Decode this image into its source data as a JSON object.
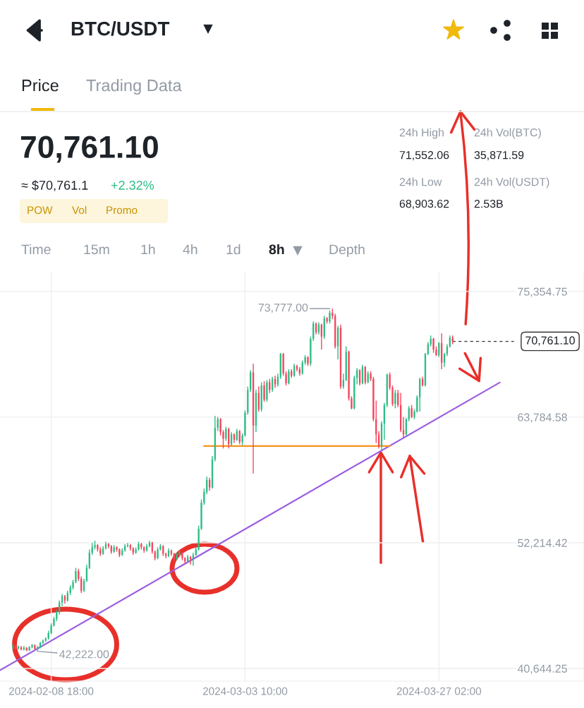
{
  "chart_data": {
    "type": "candlestick",
    "title": "BTC/USDT",
    "annotations": [
      "Price",
      "Trading Data",
      "70,761.10",
      "≈ $70,761.1",
      "+2.32%",
      "POW",
      "Vol",
      "Promo",
      "24h High",
      "71,552.06",
      "24h Vol(BTC)",
      "35,871.59",
      "24h Low",
      "68,903.62",
      "24h Vol(USDT)",
      "2.53B",
      "Time",
      "15m",
      "1h",
      "4h",
      "1d",
      "8h",
      "Depth",
      {
        "text": "73,777.00",
        "x": "2024-03-13T18:00",
        "y": 73777
      },
      {
        "text": "42,222.00",
        "x": "2024-02-07T02:00",
        "y": 42222
      }
    ],
    "colors": [
      "#2ebd85",
      "#f6465d",
      "#2ebd85",
      "#f6465d",
      "#2ebd85",
      "#f6465d",
      "#2ebd85",
      "#2ebd85",
      "#f6465d",
      "#2ebd85",
      "#2ebd85",
      "#2ebd85",
      "#2ebd85",
      "#2ebd85",
      "#2ebd85",
      "#2ebd85",
      "#2ebd85",
      "#2ebd85",
      "#2ebd85",
      "#f6465d",
      "#2ebd85",
      "#2ebd85",
      "#2ebd85",
      "#2ebd85",
      "#f6465d",
      "#f6465d",
      "#2ebd85",
      "#2ebd85",
      "#2ebd85",
      "#2ebd85",
      "#2ebd85",
      "#f6465d",
      "#f6465d",
      "#2ebd85",
      "#2ebd85",
      "#f6465d",
      "#f6465d",
      "#2ebd85",
      "#f6465d",
      "#f6465d",
      "#2ebd85",
      "#2ebd85",
      "#2ebd85",
      "#f6465d",
      "#f6465d",
      "#2ebd85",
      "#2ebd85",
      "#f6465d",
      "#f6465d",
      "#2ebd85",
      "#2ebd85",
      "#f6465d",
      "#f6465d",
      "#2ebd85",
      "#2ebd85",
      "#f6465d",
      "#f6465d",
      "#2ebd85",
      "#f6465d",
      "#f6465d",
      "#2ebd85",
      "#2ebd85",
      "#f6465d",
      "#f6465d",
      "#2ebd85",
      "#f6465d",
      "#2ebd85",
      "#2ebd85",
      "#2ebd85",
      "#2ebd85",
      "#2ebd85",
      "#2ebd85",
      "#f6465d",
      "#2ebd85",
      "#2ebd85",
      "#2ebd85",
      "#f6465d",
      "#f6465d",
      "#2ebd85",
      "#f6465d",
      "#2ebd85",
      "#f6465d",
      "#2ebd85",
      "#f6465d",
      "#2ebd85",
      "#2ebd85",
      "#2ebd85",
      "#2ebd85",
      "#f6465d",
      "#2ebd85",
      "#f6465d",
      "#2ebd85",
      "#f6465d",
      "#2ebd85",
      "#f6465d",
      "#2ebd85",
      "#f6465d",
      "#2ebd85",
      "#2ebd85",
      "#f6465d",
      "#f6465d",
      "#2ebd85",
      "#f6465d",
      "#2ebd85",
      "#f6465d",
      "#f6465d",
      "#2ebd85",
      "#2ebd85",
      "#f6465d",
      "#2ebd85",
      "#2ebd85",
      "#f6465d",
      "#2ebd85",
      "#f6465d",
      "#2ebd85",
      "#f6465d",
      "#2ebd85",
      "#f6465d",
      "#f6465d",
      "#2ebd85",
      "#f6465d",
      "#2ebd85",
      "#2ebd85",
      "#f6465d",
      "#f6465d",
      "#2ebd85",
      "#2ebd85",
      "#f6465d",
      "#2ebd85",
      "#f6465d",
      "#2ebd85",
      "#f6465d",
      "#f6465d",
      "#f6465d",
      "#f6465d",
      "#2ebd85",
      "#2ebd85",
      "#2ebd85",
      "#f6465d",
      "#f6465d",
      "#2ebd85",
      "#f6465d",
      "#f6465d",
      "#f6465d",
      "#2ebd85",
      "#2ebd85",
      "#f6465d",
      "#2ebd85",
      "#2ebd85",
      "#2ebd85",
      "#f6465d",
      "#2ebd85",
      "#2ebd85",
      "#2ebd85",
      "#f6465d",
      "#f6465d",
      "#2ebd85",
      "#f6465d",
      "#2ebd85",
      "#2ebd85",
      "#2ebd85",
      "#f6465d"
    ],
    "x": [
      "2024-02-04T02:00",
      "2024-02-04T10:00",
      "2024-02-04T18:00",
      "2024-02-05T02:00",
      "2024-02-05T10:00",
      "2024-02-05T18:00",
      "2024-02-06T02:00",
      "2024-02-06T10:00",
      "2024-02-06T18:00",
      "2024-02-07T02:00",
      "2024-02-07T10:00",
      "2024-02-07T18:00",
      "2024-02-08T02:00",
      "2024-02-08T10:00",
      "2024-02-08T18:00",
      "2024-02-09T02:00",
      "2024-02-09T10:00",
      "2024-02-09T18:00",
      "2024-02-10T02:00",
      "2024-02-10T10:00",
      "2024-02-10T18:00",
      "2024-02-11T02:00",
      "2024-02-11T10:00",
      "2024-02-11T18:00",
      "2024-02-12T02:00",
      "2024-02-12T10:00",
      "2024-02-12T18:00",
      "2024-02-13T02:00",
      "2024-02-13T10:00",
      "2024-02-13T18:00",
      "2024-02-14T02:00",
      "2024-02-14T10:00",
      "2024-02-14T18:00",
      "2024-02-15T02:00",
      "2024-02-15T10:00",
      "2024-02-15T18:00",
      "2024-02-16T02:00",
      "2024-02-16T10:00",
      "2024-02-16T18:00",
      "2024-02-17T02:00",
      "2024-02-17T10:00",
      "2024-02-17T18:00",
      "2024-02-18T02:00",
      "2024-02-18T10:00",
      "2024-02-18T18:00",
      "2024-02-19T02:00",
      "2024-02-19T10:00",
      "2024-02-19T18:00",
      "2024-02-20T02:00",
      "2024-02-20T10:00",
      "2024-02-20T18:00",
      "2024-02-21T02:00",
      "2024-02-21T10:00",
      "2024-02-21T18:00",
      "2024-02-22T02:00",
      "2024-02-22T10:00",
      "2024-02-22T18:00",
      "2024-02-23T02:00",
      "2024-02-23T10:00",
      "2024-02-23T18:00",
      "2024-02-24T02:00",
      "2024-02-24T10:00",
      "2024-02-24T18:00",
      "2024-02-25T02:00",
      "2024-02-25T10:00",
      "2024-02-25T18:00",
      "2024-02-26T02:00",
      "2024-02-26T10:00",
      "2024-02-26T18:00",
      "2024-02-27T02:00",
      "2024-02-27T10:00",
      "2024-02-27T18:00",
      "2024-02-28T02:00",
      "2024-02-28T10:00",
      "2024-02-28T18:00",
      "2024-02-29T02:00",
      "2024-02-29T10:00",
      "2024-02-29T18:00",
      "2024-03-01T02:00",
      "2024-03-01T10:00",
      "2024-03-01T18:00",
      "2024-03-02T02:00",
      "2024-03-02T10:00",
      "2024-03-02T18:00",
      "2024-03-03T02:00",
      "2024-03-03T10:00",
      "2024-03-03T18:00",
      "2024-03-04T02:00",
      "2024-03-04T10:00",
      "2024-03-04T18:00",
      "2024-03-05T02:00",
      "2024-03-05T10:00",
      "2024-03-05T18:00",
      "2024-03-06T02:00",
      "2024-03-06T10:00",
      "2024-03-06T18:00",
      "2024-03-07T02:00",
      "2024-03-07T10:00",
      "2024-03-07T18:00",
      "2024-03-08T02:00",
      "2024-03-08T10:00",
      "2024-03-08T18:00",
      "2024-03-09T02:00",
      "2024-03-09T10:00",
      "2024-03-09T18:00",
      "2024-03-10T02:00",
      "2024-03-10T10:00",
      "2024-03-10T18:00",
      "2024-03-11T02:00",
      "2024-03-11T10:00",
      "2024-03-11T18:00",
      "2024-03-12T02:00",
      "2024-03-12T10:00",
      "2024-03-12T18:00",
      "2024-03-13T02:00",
      "2024-03-13T10:00",
      "2024-03-13T18:00",
      "2024-03-14T02:00",
      "2024-03-14T10:00",
      "2024-03-14T18:00",
      "2024-03-15T02:00",
      "2024-03-15T10:00",
      "2024-03-15T18:00",
      "2024-03-16T02:00",
      "2024-03-16T10:00",
      "2024-03-16T18:00",
      "2024-03-17T02:00",
      "2024-03-17T10:00",
      "2024-03-17T18:00",
      "2024-03-18T02:00",
      "2024-03-18T10:00",
      "2024-03-18T18:00",
      "2024-03-19T02:00",
      "2024-03-19T10:00",
      "2024-03-19T18:00",
      "2024-03-20T02:00",
      "2024-03-20T10:00",
      "2024-03-20T18:00",
      "2024-03-21T02:00",
      "2024-03-21T10:00",
      "2024-03-21T18:00",
      "2024-03-22T02:00",
      "2024-03-22T10:00",
      "2024-03-22T18:00",
      "2024-03-23T02:00",
      "2024-03-23T10:00",
      "2024-03-23T18:00",
      "2024-03-24T02:00",
      "2024-03-24T10:00",
      "2024-03-24T18:00",
      "2024-03-25T02:00",
      "2024-03-25T10:00",
      "2024-03-25T18:00",
      "2024-03-26T02:00",
      "2024-03-26T10:00",
      "2024-03-26T18:00",
      "2024-03-27T02:00",
      "2024-03-27T10:00",
      "2024-03-27T18:00",
      "2024-03-28T02:00",
      "2024-03-28T10:00",
      "2024-03-28T18:00"
    ],
    "ohlc": [
      [
        42600,
        42900,
        42400,
        42700
      ],
      [
        42700,
        42800,
        42350,
        42500
      ],
      [
        42500,
        42750,
        42400,
        42600
      ],
      [
        42600,
        42700,
        42300,
        42400
      ],
      [
        42400,
        42700,
        42300,
        42550
      ],
      [
        42550,
        42600,
        42250,
        42300
      ],
      [
        42300,
        42700,
        42250,
        42600
      ],
      [
        42600,
        42900,
        42500,
        42800
      ],
      [
        42800,
        42850,
        42400,
        42450
      ],
      [
        42450,
        42700,
        42222,
        42600
      ],
      [
        42600,
        43100,
        42500,
        43000
      ],
      [
        43000,
        43300,
        42900,
        43200
      ],
      [
        43200,
        43500,
        43100,
        43400
      ],
      [
        43400,
        44100,
        43300,
        43900
      ],
      [
        43900,
        44800,
        43800,
        44600
      ],
      [
        44600,
        45400,
        44500,
        45200
      ],
      [
        45200,
        46000,
        45000,
        45800
      ],
      [
        45800,
        46900,
        45600,
        46700
      ],
      [
        46700,
        47500,
        46400,
        47300
      ],
      [
        47300,
        47400,
        46600,
        46900
      ],
      [
        46900,
        47800,
        46800,
        47600
      ],
      [
        47600,
        48300,
        47400,
        48100
      ],
      [
        48100,
        48800,
        47900,
        48600
      ],
      [
        48600,
        49900,
        48500,
        49600
      ],
      [
        49600,
        49800,
        48700,
        48900
      ],
      [
        48900,
        49100,
        47600,
        47800
      ],
      [
        47800,
        48900,
        47700,
        48700
      ],
      [
        48700,
        50200,
        48600,
        49900
      ],
      [
        49900,
        51600,
        49800,
        51300
      ],
      [
        51300,
        52200,
        51100,
        51800
      ],
      [
        51800,
        52400,
        51600,
        52000
      ],
      [
        52000,
        52100,
        51400,
        51600
      ],
      [
        51600,
        51800,
        51000,
        51200
      ],
      [
        51200,
        51900,
        51100,
        51700
      ],
      [
        51700,
        52300,
        51600,
        52100
      ],
      [
        52100,
        52200,
        51700,
        51900
      ],
      [
        51900,
        52000,
        51200,
        51400
      ],
      [
        51400,
        52000,
        51300,
        51800
      ],
      [
        51800,
        51900,
        51400,
        51600
      ],
      [
        51600,
        51700,
        50900,
        51100
      ],
      [
        51100,
        51700,
        51000,
        51500
      ],
      [
        51500,
        52100,
        51400,
        51900
      ],
      [
        51900,
        52200,
        51800,
        52000
      ],
      [
        52000,
        52100,
        51500,
        51700
      ],
      [
        51700,
        51800,
        51100,
        51300
      ],
      [
        51300,
        51800,
        51200,
        51600
      ],
      [
        51600,
        52300,
        51500,
        52100
      ],
      [
        52100,
        52200,
        51600,
        51800
      ],
      [
        51800,
        51900,
        51300,
        51500
      ],
      [
        51500,
        52100,
        51400,
        51900
      ],
      [
        51900,
        52400,
        51800,
        52200
      ],
      [
        52200,
        52300,
        51200,
        51400
      ],
      [
        51400,
        51500,
        50600,
        50800
      ],
      [
        50800,
        51800,
        50700,
        51600
      ],
      [
        51600,
        52100,
        51500,
        51900
      ],
      [
        51900,
        52000,
        51000,
        51200
      ],
      [
        51200,
        51300,
        50800,
        51000
      ],
      [
        51000,
        51700,
        50900,
        51500
      ],
      [
        51500,
        51600,
        51000,
        51200
      ],
      [
        51200,
        51300,
        50500,
        50700
      ],
      [
        50700,
        51300,
        50600,
        51100
      ],
      [
        51100,
        51500,
        51000,
        51300
      ],
      [
        51300,
        51400,
        50600,
        50800
      ],
      [
        50800,
        50900,
        50300,
        50500
      ],
      [
        50500,
        51100,
        50400,
        50900
      ],
      [
        50900,
        51000,
        50200,
        50700
      ],
      [
        50700,
        51300,
        50100,
        51100
      ],
      [
        51100,
        51800,
        51000,
        51600
      ],
      [
        51600,
        53800,
        51500,
        53500
      ],
      [
        53500,
        56200,
        53400,
        55900
      ],
      [
        55900,
        57200,
        55700,
        56900
      ],
      [
        56900,
        58300,
        56700,
        58000
      ],
      [
        58000,
        58200,
        57000,
        57300
      ],
      [
        57300,
        60200,
        57200,
        59900
      ],
      [
        59900,
        63900,
        59700,
        62800
      ],
      [
        62800,
        63800,
        62500,
        63600
      ],
      [
        63600,
        63700,
        62100,
        62400
      ],
      [
        62400,
        62600,
        60900,
        61800
      ],
      [
        61800,
        62900,
        61600,
        62700
      ],
      [
        62700,
        62800,
        60900,
        61300
      ],
      [
        61300,
        62400,
        61100,
        62200
      ],
      [
        62200,
        62300,
        61400,
        61700
      ],
      [
        61700,
        62700,
        61600,
        62500
      ],
      [
        62500,
        62600,
        61300,
        61500
      ],
      [
        61500,
        62300,
        61200,
        62100
      ],
      [
        62100,
        64400,
        62000,
        64200
      ],
      [
        64200,
        66600,
        64000,
        66300
      ],
      [
        66300,
        68100,
        66100,
        67900
      ],
      [
        67900,
        68700,
        58600,
        63000
      ],
      [
        63000,
        66300,
        62400,
        66000
      ],
      [
        66000,
        66600,
        64300,
        64500
      ],
      [
        64500,
        67000,
        64300,
        66700
      ],
      [
        66700,
        67100,
        65200,
        65400
      ],
      [
        65400,
        67200,
        65200,
        67000
      ],
      [
        67000,
        67300,
        66000,
        66300
      ],
      [
        66300,
        67500,
        66100,
        67300
      ],
      [
        67300,
        67600,
        66500,
        66800
      ],
      [
        66800,
        67800,
        66600,
        67500
      ],
      [
        67500,
        69700,
        67300,
        69600
      ],
      [
        69600,
        69700,
        67600,
        67800
      ],
      [
        67800,
        68000,
        66700,
        66900
      ],
      [
        66900,
        68200,
        66800,
        68000
      ],
      [
        68000,
        68200,
        67400,
        67600
      ],
      [
        67600,
        68700,
        67500,
        68500
      ],
      [
        68500,
        68600,
        68000,
        68200
      ],
      [
        68200,
        68400,
        67600,
        67800
      ],
      [
        67800,
        69000,
        67700,
        68800
      ],
      [
        68800,
        69500,
        68600,
        69300
      ],
      [
        69300,
        69400,
        68500,
        68700
      ],
      [
        68700,
        71200,
        68500,
        71000
      ],
      [
        71000,
        72600,
        70800,
        72400
      ],
      [
        72400,
        72500,
        71400,
        71600
      ],
      [
        71600,
        72500,
        71400,
        72300
      ],
      [
        72300,
        72400,
        70000,
        71200
      ],
      [
        71200,
        73100,
        71000,
        72900
      ],
      [
        72900,
        73000,
        72400,
        72600
      ],
      [
        72600,
        73600,
        72400,
        73400
      ],
      [
        73400,
        73777,
        72800,
        73100
      ],
      [
        73100,
        73300,
        70100,
        70300
      ],
      [
        70300,
        72200,
        69100,
        72000
      ],
      [
        72000,
        72300,
        66400,
        66600
      ],
      [
        66600,
        67800,
        66400,
        67200
      ],
      [
        67200,
        70300,
        67100,
        69800
      ],
      [
        69800,
        69900,
        65300,
        65500
      ],
      [
        65500,
        65700,
        64500,
        64600
      ],
      [
        64600,
        67600,
        64500,
        67400
      ],
      [
        67400,
        68300,
        66800,
        68100
      ],
      [
        68100,
        68200,
        66700,
        66900
      ],
      [
        66900,
        68600,
        66800,
        68400
      ],
      [
        68400,
        68500,
        66800,
        67000
      ],
      [
        67000,
        68000,
        66900,
        67800
      ],
      [
        67800,
        68000,
        67100,
        67300
      ],
      [
        67300,
        67500,
        63400,
        63600
      ],
      [
        63600,
        65300,
        61400,
        62200
      ],
      [
        62200,
        62500,
        60900,
        61100
      ],
      [
        61100,
        63400,
        60760,
        63200
      ],
      [
        63200,
        65100,
        61700,
        64900
      ],
      [
        64900,
        67800,
        64700,
        67700
      ],
      [
        67700,
        67900,
        66300,
        66500
      ],
      [
        66500,
        66700,
        64800,
        65000
      ],
      [
        65000,
        66300,
        64600,
        66000
      ],
      [
        66000,
        66300,
        64700,
        64900
      ],
      [
        64900,
        66000,
        62400,
        62600
      ],
      [
        62600,
        63800,
        61900,
        62200
      ],
      [
        62200,
        63700,
        62100,
        63600
      ],
      [
        63600,
        64800,
        63400,
        64600
      ],
      [
        64600,
        64900,
        63700,
        63800
      ],
      [
        63800,
        64500,
        63600,
        64300
      ],
      [
        64300,
        65800,
        64200,
        65600
      ],
      [
        65600,
        67400,
        64300,
        67300
      ],
      [
        67300,
        67500,
        66600,
        66700
      ],
      [
        66700,
        69700,
        66600,
        69600
      ],
      [
        69600,
        70700,
        69500,
        70500
      ],
      [
        70500,
        71300,
        70300,
        71000
      ],
      [
        71000,
        71100,
        69700,
        70000
      ],
      [
        70000,
        70300,
        69400,
        69500
      ],
      [
        69500,
        70700,
        69300,
        70600
      ],
      [
        70600,
        71500,
        68200,
        68800
      ],
      [
        68800,
        69700,
        68400,
        69600
      ],
      [
        69600,
        70500,
        69400,
        70300
      ],
      [
        70300,
        71300,
        70200,
        71100
      ],
      [
        71100,
        71300,
        70500,
        70761.1
      ]
    ],
    "series": [
      {
        "type": "line",
        "color": "#9b5de0",
        "x": [
          "2024-02-02T12:00",
          "2024-04-03T12:00"
        ],
        "values": [
          40480,
          66970
        ]
      },
      {
        "type": "line",
        "color": "#f7931a",
        "x": [
          "2024-02-27T10:00",
          "2024-03-21T02:00"
        ],
        "values": [
          61120,
          61120
        ]
      }
    ],
    "ref_lines": [
      {
        "axis": "y",
        "value": 70761.1,
        "label": "70,761.10",
        "color": "#333333",
        "line_style": "dashed"
      }
    ],
    "xlim": [
      "2024-02-02T12:00",
      "2024-04-13T19:00"
    ],
    "ylim": [
      39470,
      77170
    ],
    "xticks": [
      {
        "value": "2024-02-08T18:00",
        "label": "2024-02-08 18:00"
      },
      {
        "value": "2024-03-03T10:00",
        "label": "2024-03-03 10:00"
      },
      {
        "value": "2024-03-27T02:00",
        "label": "2024-03-27 02:00"
      }
    ],
    "yticks": [
      {
        "value": 40644.25,
        "label": "40,644.25"
      },
      {
        "value": 52214.42,
        "label": "52,214.42"
      },
      {
        "value": 63784.58,
        "label": "63,784.58"
      },
      {
        "value": 75354.75,
        "label": "75,354.75"
      }
    ],
    "grid": true
  }
}
